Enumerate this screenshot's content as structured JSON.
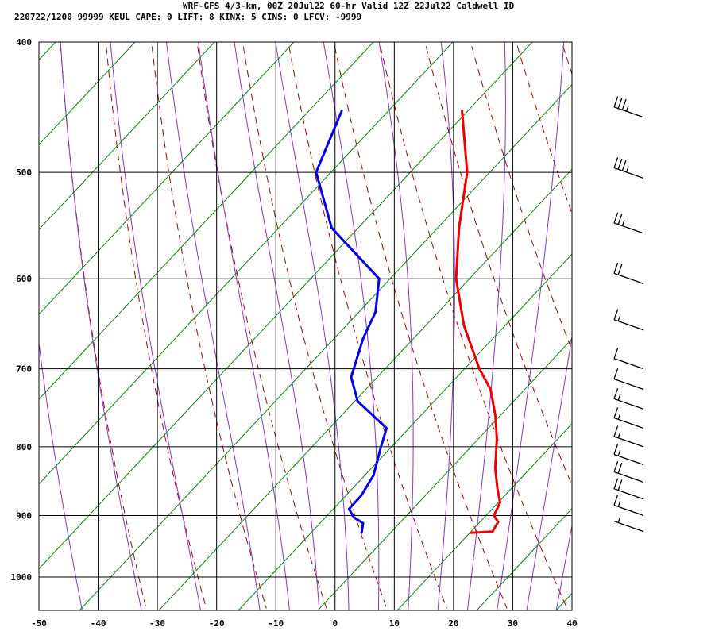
{
  "header": {
    "line1": "WRF-GFS 4/3-km, 00Z 20Jul22 60-hr Valid 12Z 22Jul22 Caldwell ID",
    "line2": "220722/1200 99999  KEUL    CAPE:     0 LIFT:     8 KINX:     5 CINS:     0 LFCV: -9999"
  },
  "chart_data": {
    "type": "line",
    "title": "WRF-GFS 4/3-km, 00Z 20Jul22 60-hr Valid 12Z 22Jul22 Caldwell ID",
    "xlabel": "",
    "ylabel": "",
    "xlim": [
      -50,
      40
    ],
    "ylim": [
      1050,
      400
    ],
    "x_ticks": [
      "-50",
      "-40",
      "-30",
      "-20",
      "-10",
      "0",
      "10",
      "20",
      "30",
      "40"
    ],
    "y_ticks": [
      "400",
      "500",
      "600",
      "700",
      "800",
      "900",
      "1000"
    ],
    "grid": true,
    "series": [
      {
        "id": "temperature",
        "color": "#ee0000",
        "points": [
          [
            -15.2,
            450
          ],
          [
            -9.5,
            500
          ],
          [
            -6.5,
            550
          ],
          [
            -3.0,
            600
          ],
          [
            2.0,
            650
          ],
          [
            8.0,
            700
          ],
          [
            11.5,
            725
          ],
          [
            14.5,
            760
          ],
          [
            16.5,
            790
          ],
          [
            18.5,
            830
          ],
          [
            20.5,
            860
          ],
          [
            22.0,
            880
          ],
          [
            22.0,
            900
          ],
          [
            23.2,
            910
          ],
          [
            23.0,
            925
          ],
          [
            19.5,
            927
          ]
        ]
      },
      {
        "id": "dewpoint",
        "color": "#0000ee",
        "points": [
          [
            -35.5,
            450
          ],
          [
            -35.0,
            500
          ],
          [
            -28.0,
            550
          ],
          [
            -16.0,
            600
          ],
          [
            -14.0,
            635
          ],
          [
            -14.0,
            665
          ],
          [
            -13.0,
            710
          ],
          [
            -10.0,
            740
          ],
          [
            -3.0,
            775
          ],
          [
            -2.5,
            800
          ],
          [
            -1.5,
            840
          ],
          [
            -2.0,
            870
          ],
          [
            -3.0,
            890
          ],
          [
            -1.5,
            903
          ],
          [
            0.5,
            912
          ],
          [
            1.0,
            927
          ]
        ]
      }
    ],
    "wind_barbs": [
      {
        "p": 455,
        "speed_kt": 35
      },
      {
        "p": 505,
        "speed_kt": 35
      },
      {
        "p": 555,
        "speed_kt": 25
      },
      {
        "p": 605,
        "speed_kt": 20
      },
      {
        "p": 655,
        "speed_kt": 15
      },
      {
        "p": 700,
        "speed_kt": 10
      },
      {
        "p": 725,
        "speed_kt": 10
      },
      {
        "p": 750,
        "speed_kt": 15
      },
      {
        "p": 775,
        "speed_kt": 15
      },
      {
        "p": 800,
        "speed_kt": 15
      },
      {
        "p": 825,
        "speed_kt": 15
      },
      {
        "p": 850,
        "speed_kt": 20
      },
      {
        "p": 875,
        "speed_kt": 20
      },
      {
        "p": 900,
        "speed_kt": 15
      },
      {
        "p": 925,
        "speed_kt": 5
      }
    ],
    "background_lines": {
      "isotherm_color": "#000000",
      "dry_adiabat_color": "#aa0000",
      "moist_adiabat_color": "#8833cc",
      "mixing_ratio_color": "#008800"
    }
  }
}
